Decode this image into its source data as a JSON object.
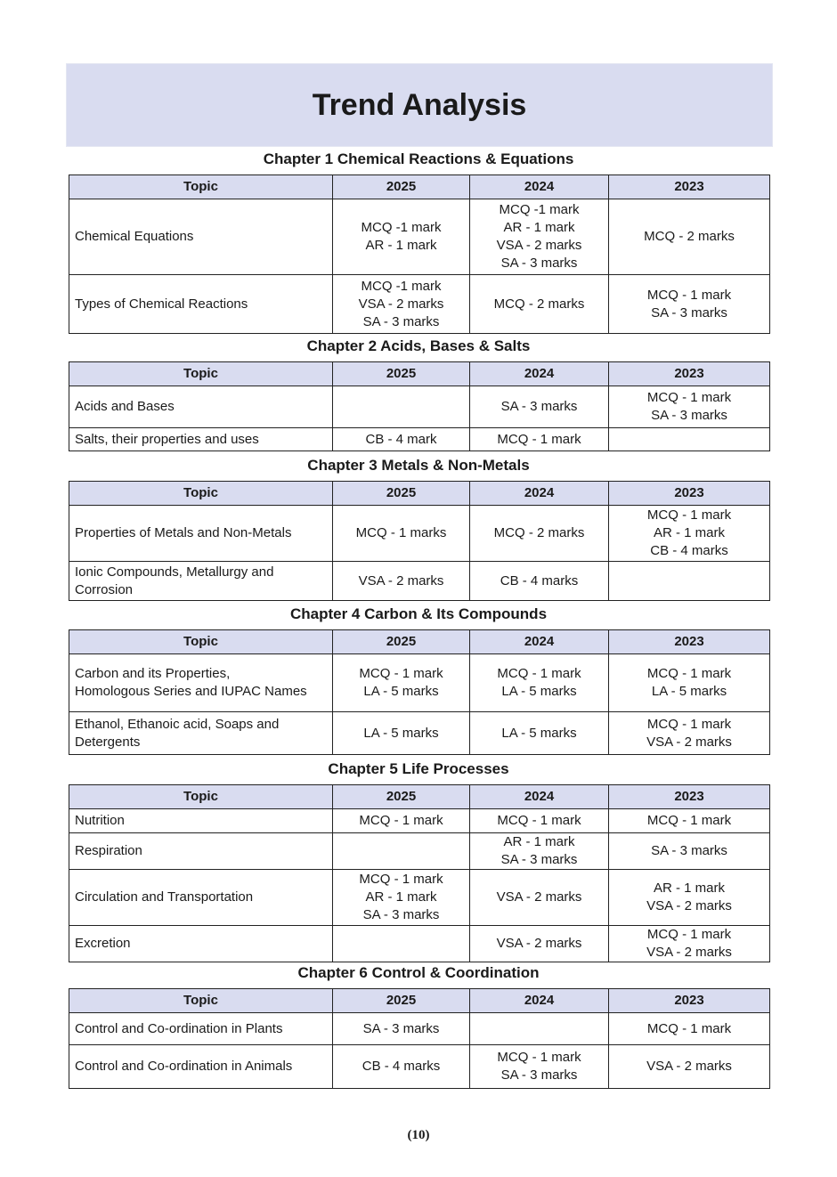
{
  "title": "Trend Analysis",
  "columns": [
    "Topic",
    "2025",
    "2024",
    "2023"
  ],
  "chapters": [
    {
      "title": "Chapter 1 Chemical Reactions & Equations",
      "rows": [
        [
          "Chemical Equations",
          "MCQ -1 mark\nAR - 1 mark",
          "MCQ -1 mark\nAR - 1 mark\nVSA - 2 marks\nSA - 3 marks",
          "MCQ - 2 marks"
        ],
        [
          "Types of Chemical Reactions",
          "MCQ -1 mark\nVSA - 2 marks\nSA - 3 marks",
          "MCQ - 2 marks",
          "MCQ - 1 mark\nSA - 3 marks"
        ]
      ]
    },
    {
      "title": "Chapter 2 Acids, Bases & Salts",
      "rows": [
        [
          "Acids and Bases",
          "",
          "SA - 3 marks",
          "MCQ - 1 mark\nSA - 3 marks"
        ],
        [
          "Salts, their properties and uses",
          "CB - 4 mark",
          "MCQ - 1 mark",
          ""
        ]
      ]
    },
    {
      "title": "Chapter 3 Metals & Non-Metals",
      "rows": [
        [
          "Properties of Metals and Non-Metals",
          "MCQ - 1 marks",
          "MCQ - 2 marks",
          "MCQ - 1 mark\nAR - 1 mark\nCB - 4 marks"
        ],
        [
          "Ionic Compounds, Metallurgy and\nCorrosion",
          "VSA - 2 marks",
          "CB - 4 marks",
          ""
        ]
      ]
    },
    {
      "title": "Chapter 4 Carbon & Its Compounds",
      "rows": [
        [
          "Carbon and its Properties,\nHomologous Series and IUPAC Names",
          "MCQ - 1 mark\nLA - 5 marks",
          "MCQ - 1 mark\nLA - 5 marks",
          "MCQ - 1 mark\nLA - 5 marks"
        ],
        [
          "Ethanol, Ethanoic acid, Soaps and\nDetergents",
          "LA - 5 marks",
          "LA - 5 marks",
          "MCQ - 1 mark\nVSA - 2 marks"
        ]
      ]
    },
    {
      "title": "Chapter 5 Life Processes",
      "rows": [
        [
          "Nutrition",
          "MCQ - 1 mark",
          "MCQ - 1 mark",
          "MCQ - 1 mark"
        ],
        [
          "Respiration",
          "",
          "AR - 1 mark\nSA - 3 marks",
          "SA - 3 marks"
        ],
        [
          "Circulation and Transportation",
          "MCQ - 1 mark\nAR - 1 mark\nSA - 3 marks",
          "VSA - 2 marks",
          "AR - 1 mark\nVSA - 2 marks"
        ],
        [
          "Excretion",
          "",
          "VSA - 2 marks",
          "MCQ - 1 mark\nVSA - 2 marks"
        ]
      ]
    },
    {
      "title": "Chapter 6 Control & Coordination",
      "rows": [
        [
          "Control and Co-ordination in Plants",
          "SA - 3 marks",
          "",
          "MCQ - 1 mark"
        ],
        [
          "Control and Co-ordination in Animals",
          "CB - 4 marks",
          "MCQ - 1 mark\nSA - 3 marks",
          "VSA - 2 marks"
        ]
      ]
    }
  ],
  "page_number": "(10)"
}
